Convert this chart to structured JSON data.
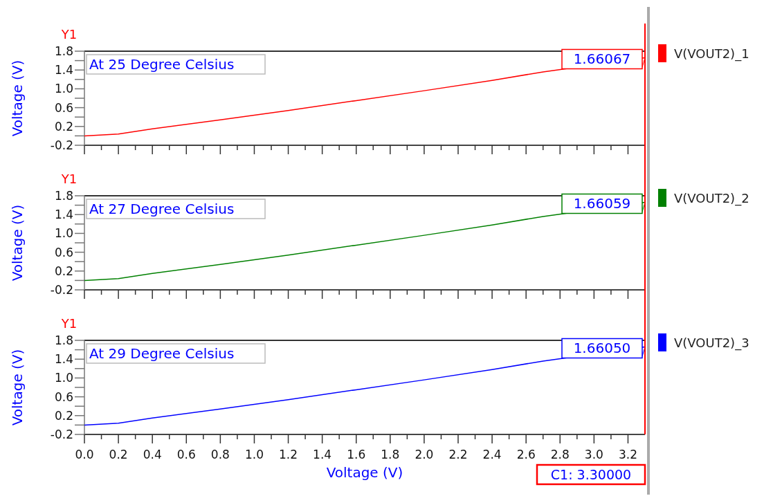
{
  "chart_data": [
    {
      "type": "line",
      "title": "At 25 Degree Celsius",
      "ylabel": "Voltage (V)",
      "annotations": [
        "Y1"
      ],
      "x": [
        0,
        0.2,
        0.4,
        0.8,
        1.2,
        1.6,
        2.0,
        2.4,
        2.7,
        3.3
      ],
      "series": [
        {
          "name": "V(VOUT2)_1",
          "color": "#ff0000",
          "values": [
            0,
            0.04,
            0.15,
            0.34,
            0.54,
            0.75,
            0.96,
            1.18,
            1.36,
            1.66067
          ],
          "value_labels": [
            null,
            null,
            null,
            null,
            null,
            null,
            null,
            null,
            null,
            "1.66067"
          ]
        }
      ],
      "xlim": [
        0,
        3.3
      ],
      "xticks": [
        0,
        {
          "value": 0.1,
          "label": null
        },
        0.2,
        {
          "value": 0.3,
          "label": null
        },
        0.4,
        {
          "value": 0.5,
          "label": null
        },
        0.6,
        {
          "value": 0.7,
          "label": null
        },
        0.8,
        {
          "value": 0.9,
          "label": null
        },
        1,
        {
          "value": 1.1,
          "label": null
        },
        1.2,
        {
          "value": 1.3,
          "label": null
        },
        1.4,
        {
          "value": 1.5,
          "label": null
        },
        1.6,
        {
          "value": 1.7,
          "label": null
        },
        1.8,
        {
          "value": 1.9,
          "label": null
        },
        2,
        {
          "value": 2.1,
          "label": null
        },
        2.2,
        {
          "value": 2.3,
          "label": null
        },
        2.4,
        {
          "value": 2.5,
          "label": null
        },
        2.6,
        {
          "value": 2.7,
          "label": null
        },
        2.8,
        {
          "value": 2.9,
          "label": null
        },
        3,
        {
          "value": 3.1,
          "label": null
        },
        3.2
      ],
      "ylim": [
        -0.2,
        1.8
      ],
      "yticks": [
        -0.2,
        {
          "value": 0,
          "label": null
        },
        0.2,
        {
          "value": 0.4,
          "label": null
        },
        0.6,
        {
          "value": 0.8,
          "label": null
        },
        {
          "value": 1,
          "label": "1.0"
        },
        {
          "value": 1.2,
          "label": null
        },
        1.4,
        {
          "value": 1.6,
          "label": null
        },
        1.8
      ],
      "tick_labels": "y",
      "grid": false,
      "legend": "right",
      "ref_lines": [
        {
          "axis": "x",
          "value": 3.3,
          "color": "#ff0000"
        }
      ]
    },
    {
      "type": "line",
      "title": "At 27 Degree Celsius",
      "ylabel": "Voltage (V)",
      "annotations": [
        "Y1"
      ],
      "x": [
        0,
        0.2,
        0.4,
        0.8,
        1.2,
        1.6,
        2.0,
        2.4,
        2.7,
        3.3
      ],
      "series": [
        {
          "name": "V(VOUT2)_2",
          "color": "#008000",
          "values": [
            0,
            0.04,
            0.15,
            0.34,
            0.54,
            0.75,
            0.96,
            1.18,
            1.36,
            1.66059
          ],
          "value_labels": [
            null,
            null,
            null,
            null,
            null,
            null,
            null,
            null,
            null,
            "1.66059"
          ]
        }
      ],
      "xlim": [
        0,
        3.3
      ],
      "xticks": [
        0,
        {
          "value": 0.1,
          "label": null
        },
        0.2,
        {
          "value": 0.3,
          "label": null
        },
        0.4,
        {
          "value": 0.5,
          "label": null
        },
        0.6,
        {
          "value": 0.7,
          "label": null
        },
        0.8,
        {
          "value": 0.9,
          "label": null
        },
        1,
        {
          "value": 1.1,
          "label": null
        },
        1.2,
        {
          "value": 1.3,
          "label": null
        },
        1.4,
        {
          "value": 1.5,
          "label": null
        },
        1.6,
        {
          "value": 1.7,
          "label": null
        },
        1.8,
        {
          "value": 1.9,
          "label": null
        },
        2,
        {
          "value": 2.1,
          "label": null
        },
        2.2,
        {
          "value": 2.3,
          "label": null
        },
        2.4,
        {
          "value": 2.5,
          "label": null
        },
        2.6,
        {
          "value": 2.7,
          "label": null
        },
        2.8,
        {
          "value": 2.9,
          "label": null
        },
        3,
        {
          "value": 3.1,
          "label": null
        },
        3.2
      ],
      "ylim": [
        -0.2,
        1.8
      ],
      "yticks": [
        -0.2,
        {
          "value": 0,
          "label": null
        },
        0.2,
        {
          "value": 0.4,
          "label": null
        },
        0.6,
        {
          "value": 0.8,
          "label": null
        },
        {
          "value": 1,
          "label": "1.0"
        },
        {
          "value": 1.2,
          "label": null
        },
        1.4,
        {
          "value": 1.6,
          "label": null
        },
        1.8
      ],
      "tick_labels": "y",
      "grid": false,
      "legend": "right",
      "ref_lines": [
        {
          "axis": "x",
          "value": 3.3,
          "color": "#ff0000"
        }
      ]
    },
    {
      "type": "line",
      "title": "At 29 Degree Celsius",
      "xlabel": "Voltage (V)",
      "ylabel": "Voltage (V)",
      "annotations": [
        "Y1"
      ],
      "x": [
        0,
        0.2,
        0.4,
        0.8,
        1.2,
        1.6,
        2.0,
        2.4,
        2.7,
        3.3
      ],
      "series": [
        {
          "name": "V(VOUT2)_3",
          "color": "#0000ff",
          "values": [
            0,
            0.04,
            0.15,
            0.34,
            0.54,
            0.75,
            0.96,
            1.18,
            1.36,
            1.6605
          ],
          "value_labels": [
            null,
            null,
            null,
            null,
            null,
            null,
            null,
            null,
            null,
            "1.66050"
          ]
        }
      ],
      "xlim": [
        0,
        3.3
      ],
      "xticks": [
        {
          "value": 0,
          "label": "0.0"
        },
        {
          "value": 0.1,
          "label": null
        },
        0.2,
        {
          "value": 0.3,
          "label": null
        },
        0.4,
        {
          "value": 0.5,
          "label": null
        },
        0.6,
        {
          "value": 0.7,
          "label": null
        },
        0.8,
        {
          "value": 0.9,
          "label": null
        },
        {
          "value": 1,
          "label": "1.0"
        },
        {
          "value": 1.1,
          "label": null
        },
        1.2,
        {
          "value": 1.3,
          "label": null
        },
        1.4,
        {
          "value": 1.5,
          "label": null
        },
        1.6,
        {
          "value": 1.7,
          "label": null
        },
        1.8,
        {
          "value": 1.9,
          "label": null
        },
        {
          "value": 2,
          "label": "2.0"
        },
        {
          "value": 2.1,
          "label": null
        },
        2.2,
        {
          "value": 2.3,
          "label": null
        },
        2.4,
        {
          "value": 2.5,
          "label": null
        },
        2.6,
        {
          "value": 2.7,
          "label": null
        },
        2.8,
        {
          "value": 2.9,
          "label": null
        },
        {
          "value": 3,
          "label": "3.0"
        },
        {
          "value": 3.1,
          "label": null
        },
        3.2
      ],
      "ylim": [
        -0.2,
        1.8
      ],
      "yticks": [
        -0.2,
        {
          "value": 0,
          "label": null
        },
        0.2,
        {
          "value": 0.4,
          "label": null
        },
        0.6,
        {
          "value": 0.8,
          "label": null
        },
        {
          "value": 1,
          "label": "1.0"
        },
        {
          "value": 1.2,
          "label": null
        },
        1.4,
        {
          "value": 1.6,
          "label": null
        },
        1.8
      ],
      "grid": false,
      "legend": "right",
      "ref_lines": [
        {
          "axis": "x",
          "value": 3.3,
          "color": "#ff0000",
          "label": "C1: 3.30000"
        }
      ]
    }
  ]
}
